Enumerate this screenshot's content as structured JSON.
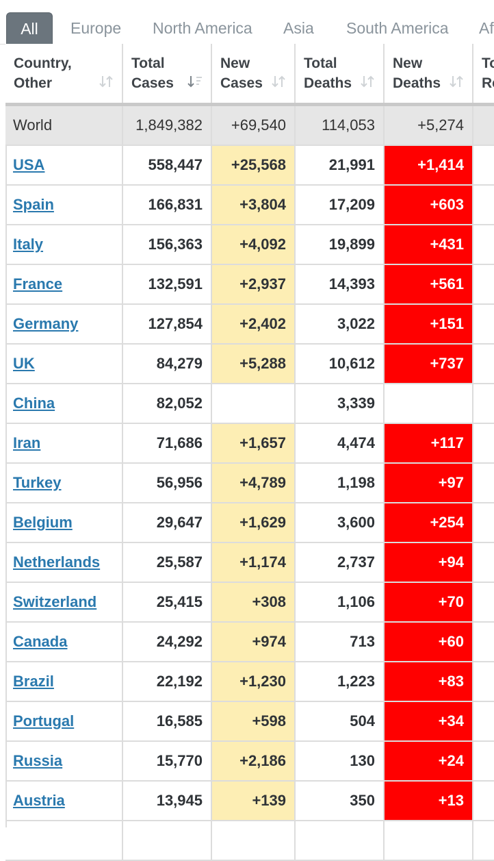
{
  "tabs": [
    {
      "label": "All",
      "active": true
    },
    {
      "label": "Europe"
    },
    {
      "label": "North America"
    },
    {
      "label": "Asia"
    },
    {
      "label": "South America"
    },
    {
      "label": "Af"
    }
  ],
  "columns": [
    {
      "line1": "Country,",
      "line2": "Other",
      "sort_icon": "sort-icon"
    },
    {
      "line1": "Total",
      "line2": "Cases",
      "sort_icon": "sort-desc-icon"
    },
    {
      "line1": "New",
      "line2": "Cases",
      "sort_icon": "sort-icon"
    },
    {
      "line1": "Total",
      "line2": "Deaths",
      "sort_icon": "sort-icon"
    },
    {
      "line1": "New",
      "line2": "Deaths",
      "sort_icon": "sort-icon"
    },
    {
      "line1": "To",
      "line2": "Re"
    }
  ],
  "world": {
    "country": "World",
    "total_cases": "1,849,382",
    "new_cases": "+69,540",
    "total_deaths": "114,053",
    "new_deaths": "+5,274"
  },
  "rows": [
    {
      "country": "USA",
      "total_cases": "558,447",
      "new_cases": "+25,568",
      "total_deaths": "21,991",
      "new_deaths": "+1,414"
    },
    {
      "country": "Spain",
      "total_cases": "166,831",
      "new_cases": "+3,804",
      "total_deaths": "17,209",
      "new_deaths": "+603"
    },
    {
      "country": "Italy",
      "total_cases": "156,363",
      "new_cases": "+4,092",
      "total_deaths": "19,899",
      "new_deaths": "+431"
    },
    {
      "country": "France",
      "total_cases": "132,591",
      "new_cases": "+2,937",
      "total_deaths": "14,393",
      "new_deaths": "+561"
    },
    {
      "country": "Germany",
      "total_cases": "127,854",
      "new_cases": "+2,402",
      "total_deaths": "3,022",
      "new_deaths": "+151"
    },
    {
      "country": "UK",
      "total_cases": "84,279",
      "new_cases": "+5,288",
      "total_deaths": "10,612",
      "new_deaths": "+737"
    },
    {
      "country": "China",
      "total_cases": "82,052",
      "new_cases": "",
      "total_deaths": "3,339",
      "new_deaths": ""
    },
    {
      "country": "Iran",
      "total_cases": "71,686",
      "new_cases": "+1,657",
      "total_deaths": "4,474",
      "new_deaths": "+117"
    },
    {
      "country": "Turkey",
      "total_cases": "56,956",
      "new_cases": "+4,789",
      "total_deaths": "1,198",
      "new_deaths": "+97"
    },
    {
      "country": "Belgium",
      "total_cases": "29,647",
      "new_cases": "+1,629",
      "total_deaths": "3,600",
      "new_deaths": "+254"
    },
    {
      "country": "Netherlands",
      "total_cases": "25,587",
      "new_cases": "+1,174",
      "total_deaths": "2,737",
      "new_deaths": "+94"
    },
    {
      "country": "Switzerland",
      "total_cases": "25,415",
      "new_cases": "+308",
      "total_deaths": "1,106",
      "new_deaths": "+70"
    },
    {
      "country": "Canada",
      "total_cases": "24,292",
      "new_cases": "+974",
      "total_deaths": "713",
      "new_deaths": "+60"
    },
    {
      "country": "Brazil",
      "total_cases": "22,192",
      "new_cases": "+1,230",
      "total_deaths": "1,223",
      "new_deaths": "+83"
    },
    {
      "country": "Portugal",
      "total_cases": "16,585",
      "new_cases": "+598",
      "total_deaths": "504",
      "new_deaths": "+34"
    },
    {
      "country": "Russia",
      "total_cases": "15,770",
      "new_cases": "+2,186",
      "total_deaths": "130",
      "new_deaths": "+24"
    },
    {
      "country": "Austria",
      "total_cases": "13,945",
      "new_cases": "+139",
      "total_deaths": "350",
      "new_deaths": "+13"
    },
    {
      "country": "",
      "total_cases": "",
      "new_cases": "",
      "total_deaths": "",
      "new_deaths": ""
    }
  ],
  "colors": {
    "new_cases_bg": "#fdeeb4",
    "new_deaths_bg": "#ff0000",
    "link": "#2a79ae",
    "world_bg": "#e6e6e6",
    "active_tab_bg": "#6b757d"
  }
}
